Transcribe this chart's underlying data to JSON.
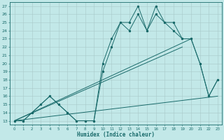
{
  "bg_color": "#c2e8e8",
  "line_color": "#1a6b6b",
  "xlabel": "Humidex (Indice chaleur)",
  "x_all": [
    0,
    1,
    2,
    3,
    4,
    5,
    6,
    7,
    8,
    9,
    10,
    11,
    12,
    13,
    14,
    15,
    16,
    17,
    18,
    19,
    20,
    21,
    22,
    23
  ],
  "curve1": [
    13,
    13,
    14,
    15,
    16,
    15,
    14,
    13,
    13,
    13,
    20,
    23,
    25,
    25,
    27,
    24,
    27,
    25,
    25,
    23,
    23,
    20,
    16,
    18
  ],
  "curve2": [
    13,
    13,
    14,
    15,
    16,
    15,
    14,
    13,
    13,
    13,
    19,
    22,
    25,
    24,
    26,
    24,
    26,
    25,
    24,
    23,
    23,
    20,
    16,
    18
  ],
  "line1_x": [
    0,
    20
  ],
  "line1_y": [
    13,
    23
  ],
  "line2_x": [
    0,
    19
  ],
  "line2_y": [
    13,
    22
  ],
  "line3_x": [
    0,
    23
  ],
  "line3_y": [
    13,
    16
  ],
  "xlim": [
    -0.5,
    23.5
  ],
  "ylim": [
    12.5,
    27.5
  ],
  "yticks": [
    13,
    14,
    15,
    16,
    17,
    18,
    19,
    20,
    21,
    22,
    23,
    24,
    25,
    26,
    27
  ],
  "xticks": [
    0,
    1,
    2,
    3,
    4,
    5,
    6,
    7,
    8,
    9,
    10,
    11,
    12,
    13,
    14,
    15,
    16,
    17,
    18,
    19,
    20,
    21,
    22,
    23
  ]
}
